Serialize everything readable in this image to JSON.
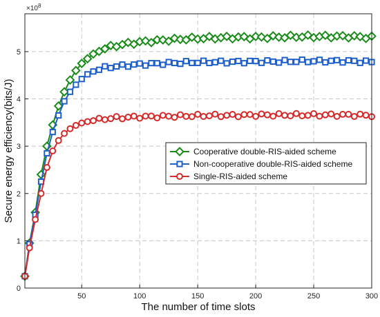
{
  "chart_data": {
    "type": "line",
    "xlabel": "The number of time slots",
    "ylabel": "Secure energy efficiency(bits/J)",
    "y_multiplier": "×10",
    "y_multiplier_exp": "8",
    "xlim": [
      1,
      300
    ],
    "ylim": [
      0,
      5.8
    ],
    "x_ticks": [
      50,
      100,
      150,
      200,
      250,
      300
    ],
    "y_ticks": [
      0,
      1,
      2,
      3,
      4,
      5
    ],
    "grid": true,
    "legend_position": "center-right",
    "marker_step": 5,
    "series": [
      {
        "name": "Cooperative double-RIS-aided scheme",
        "color": "#1a8c1a",
        "marker": "diamond",
        "points": [
          [
            1,
            0.25
          ],
          [
            5,
            0.95
          ],
          [
            10,
            1.6
          ],
          [
            15,
            2.4
          ],
          [
            20,
            3.0
          ],
          [
            25,
            3.45
          ],
          [
            30,
            3.85
          ],
          [
            35,
            4.15
          ],
          [
            40,
            4.4
          ],
          [
            45,
            4.6
          ],
          [
            50,
            4.75
          ],
          [
            55,
            4.85
          ],
          [
            60,
            4.95
          ],
          [
            65,
            5.02
          ],
          [
            70,
            5.07
          ],
          [
            75,
            5.1
          ],
          [
            80,
            5.13
          ],
          [
            90,
            5.17
          ],
          [
            100,
            5.2
          ],
          [
            120,
            5.24
          ],
          [
            140,
            5.27
          ],
          [
            160,
            5.29
          ],
          [
            180,
            5.3
          ],
          [
            200,
            5.3
          ],
          [
            220,
            5.31
          ],
          [
            240,
            5.32
          ],
          [
            260,
            5.32
          ],
          [
            280,
            5.32
          ],
          [
            300,
            5.3
          ]
        ]
      },
      {
        "name": "Non-cooperative double-RIS-aided scheme",
        "color": "#1f5fc9",
        "marker": "square",
        "points": [
          [
            1,
            0.25
          ],
          [
            5,
            0.93
          ],
          [
            10,
            1.55
          ],
          [
            15,
            2.25
          ],
          [
            20,
            2.85
          ],
          [
            25,
            3.3
          ],
          [
            30,
            3.65
          ],
          [
            35,
            3.95
          ],
          [
            40,
            4.15
          ],
          [
            45,
            4.3
          ],
          [
            50,
            4.42
          ],
          [
            55,
            4.52
          ],
          [
            60,
            4.58
          ],
          [
            65,
            4.63
          ],
          [
            70,
            4.66
          ],
          [
            80,
            4.69
          ],
          [
            90,
            4.71
          ],
          [
            100,
            4.73
          ],
          [
            120,
            4.75
          ],
          [
            140,
            4.77
          ],
          [
            160,
            4.78
          ],
          [
            180,
            4.78
          ],
          [
            200,
            4.79
          ],
          [
            220,
            4.79
          ],
          [
            240,
            4.8
          ],
          [
            260,
            4.8
          ],
          [
            280,
            4.8
          ],
          [
            300,
            4.78
          ]
        ]
      },
      {
        "name": "Single-RIS-aided scheme",
        "color": "#d42a2a",
        "marker": "circle",
        "points": [
          [
            1,
            0.25
          ],
          [
            5,
            0.85
          ],
          [
            10,
            1.45
          ],
          [
            15,
            2.0
          ],
          [
            20,
            2.55
          ],
          [
            25,
            2.9
          ],
          [
            30,
            3.12
          ],
          [
            35,
            3.27
          ],
          [
            40,
            3.37
          ],
          [
            45,
            3.44
          ],
          [
            50,
            3.49
          ],
          [
            55,
            3.52
          ],
          [
            60,
            3.54
          ],
          [
            65,
            3.56
          ],
          [
            70,
            3.58
          ],
          [
            80,
            3.6
          ],
          [
            90,
            3.61
          ],
          [
            100,
            3.62
          ],
          [
            120,
            3.63
          ],
          [
            140,
            3.64
          ],
          [
            160,
            3.65
          ],
          [
            180,
            3.65
          ],
          [
            200,
            3.66
          ],
          [
            220,
            3.66
          ],
          [
            240,
            3.66
          ],
          [
            260,
            3.66
          ],
          [
            280,
            3.66
          ],
          [
            300,
            3.65
          ]
        ]
      }
    ]
  }
}
